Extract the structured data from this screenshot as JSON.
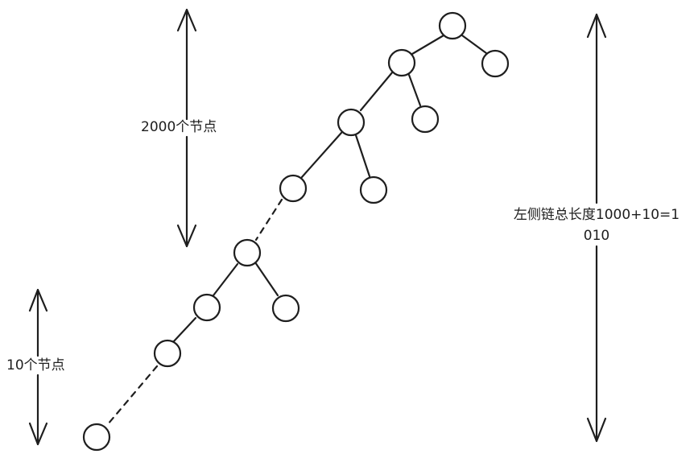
{
  "labels": {
    "top_count": "2000个节点",
    "bottom_count": "10个节点",
    "chain_line1": "左侧链总长度1000+10=1",
    "chain_line2": "010"
  },
  "colors": {
    "stroke": "#1e1e1e",
    "background": "#ffffff"
  }
}
